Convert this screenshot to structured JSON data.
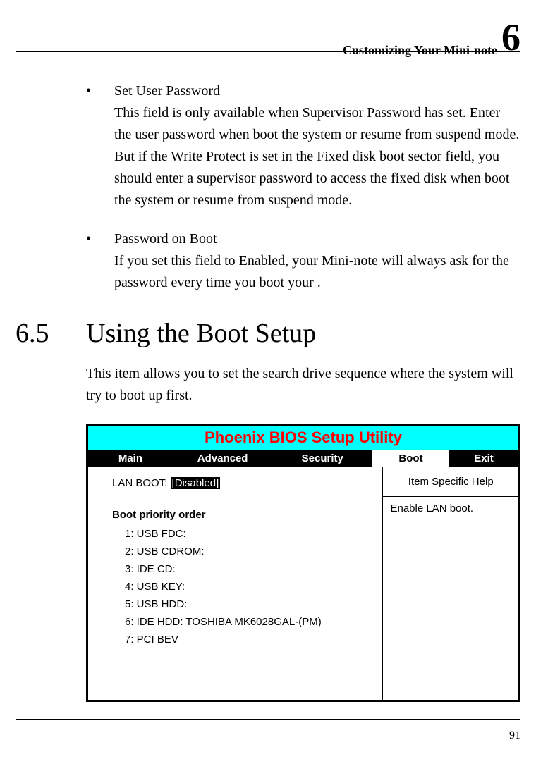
{
  "header": {
    "text": "Customizing Your Mini-note",
    "chapter": "6"
  },
  "bullets": [
    {
      "title": "Set User Password",
      "text": "This field is only available when Supervisor Password has set. Enter the user password when boot the system or resume from suspend mode. But if the Write Protect is set in the Fixed disk boot sector field, you should enter a supervisor password to access the fixed disk when boot the system or resume from suspend mode."
    },
    {
      "title": "Password on Boot",
      "text": "If you set this field to Enabled, your Mini-note will always ask for the password every time you boot your ."
    }
  ],
  "section": {
    "num": "6.5",
    "title": "Using the Boot Setup",
    "desc": "This item allows you to set the search drive sequence where the system will try to boot up first."
  },
  "bios": {
    "title": "Phoenix BIOS Setup Utility",
    "title_bg": "#00ffff",
    "title_color": "#ff0000",
    "tabs": {
      "main": "Main",
      "advanced": "Advanced",
      "security": "Security",
      "boot": "Boot",
      "exit": "Exit"
    },
    "lan_label": "LAN BOOT:",
    "lan_value": "[Disabled]",
    "bpo_title": "Boot priority order",
    "bpo": [
      "1: USB FDC:",
      "2: USB CDROM:",
      "3: IDE CD:",
      "4: USB KEY:",
      "5: USB HDD:",
      "6: IDE HDD: TOSHIBA MK6028GAL-(PM)",
      "7: PCI BEV"
    ],
    "help_title": "Item Specific Help",
    "help_text": "Enable LAN boot."
  },
  "page_number": "91"
}
